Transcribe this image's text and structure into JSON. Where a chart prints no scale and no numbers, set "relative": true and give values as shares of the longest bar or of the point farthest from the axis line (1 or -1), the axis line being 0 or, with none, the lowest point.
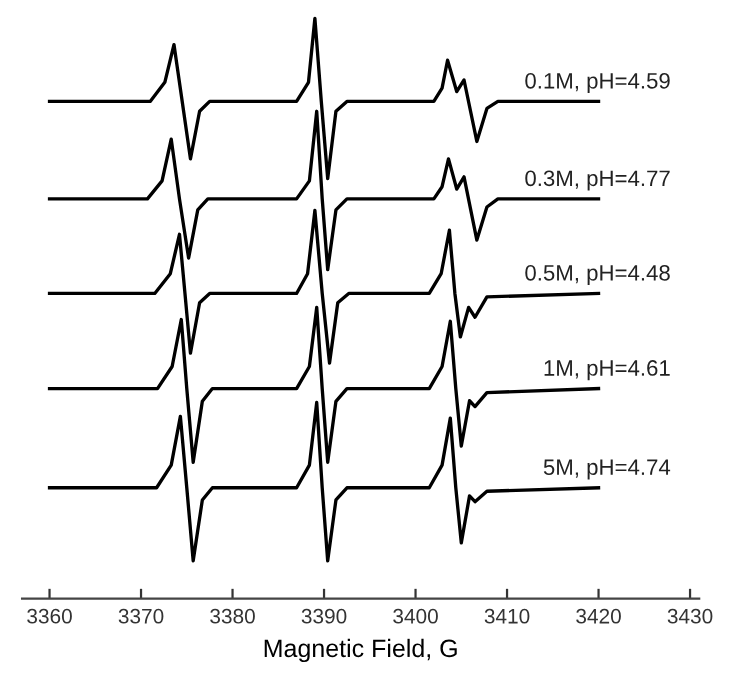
{
  "chart_data": {
    "type": "line",
    "xlabel": "Magnetic Field, G",
    "relative": true,
    "tick_labels": "x",
    "xlim": [
      3357,
      3431
    ],
    "xticks": [
      3360,
      3370,
      3380,
      3390,
      3400,
      3410,
      3420,
      3430
    ],
    "series": [
      {
        "name": "0.1M, pH=4.59",
        "color": "#000000",
        "x": [
          3360,
          3371,
          3372.6,
          3373.6,
          3374.5,
          3375.4,
          3376.4,
          3377.5,
          3387,
          3388.3,
          3389.0,
          3389.7,
          3390.4,
          3391.3,
          3392.5,
          3402,
          3402.9,
          3403.5,
          3404.5,
          3405.3,
          3406.7,
          3407.8,
          3409,
          3420
        ],
        "values": [
          0.857,
          0.857,
          0.89,
          0.955,
          0.857,
          0.758,
          0.84,
          0.857,
          0.857,
          0.89,
          1.0,
          0.857,
          0.724,
          0.84,
          0.857,
          0.857,
          0.88,
          0.928,
          0.874,
          0.894,
          0.788,
          0.845,
          0.857,
          0.857
        ]
      },
      {
        "name": "0.3M, pH=4.77",
        "color": "#000000",
        "x": [
          3360,
          3370.7,
          3372.3,
          3373.3,
          3374.2,
          3375.2,
          3376.2,
          3377.3,
          3387,
          3388.4,
          3389.2,
          3389.8,
          3390.4,
          3391.3,
          3392.5,
          3402,
          3402.9,
          3403.6,
          3404.5,
          3405.3,
          3406.7,
          3407.8,
          3409,
          3420
        ],
        "values": [
          0.689,
          0.689,
          0.72,
          0.792,
          0.689,
          0.587,
          0.67,
          0.689,
          0.689,
          0.72,
          0.84,
          0.689,
          0.567,
          0.67,
          0.689,
          0.689,
          0.71,
          0.758,
          0.706,
          0.727,
          0.618,
          0.675,
          0.689,
          0.689
        ]
      },
      {
        "name": "0.5M, pH=4.48",
        "color": "#000000",
        "x": [
          3360,
          3371.5,
          3373.2,
          3374.2,
          3374.8,
          3375.4,
          3376.4,
          3377.5,
          3387,
          3388.2,
          3389.0,
          3389.8,
          3390.6,
          3391.5,
          3392.7,
          3401.5,
          3402.8,
          3403.7,
          3404.3,
          3404.9,
          3405.8,
          3406.5,
          3407.8,
          3420
        ],
        "values": [
          0.526,
          0.526,
          0.56,
          0.628,
          0.526,
          0.423,
          0.51,
          0.526,
          0.526,
          0.56,
          0.669,
          0.526,
          0.406,
          0.51,
          0.526,
          0.526,
          0.56,
          0.635,
          0.526,
          0.451,
          0.502,
          0.485,
          0.52,
          0.526
        ]
      },
      {
        "name": "1M, pH=4.61",
        "color": "#000000",
        "x": [
          3360,
          3371.8,
          3373.4,
          3374.4,
          3375.0,
          3375.7,
          3376.7,
          3377.8,
          3387,
          3388.4,
          3389.2,
          3389.8,
          3390.4,
          3391.3,
          3392.5,
          3401.5,
          3402.9,
          3403.8,
          3404.4,
          3405.0,
          3405.9,
          3406.5,
          3407.8,
          3420
        ],
        "values": [
          0.362,
          0.362,
          0.4,
          0.481,
          0.362,
          0.235,
          0.34,
          0.362,
          0.362,
          0.4,
          0.502,
          0.362,
          0.235,
          0.34,
          0.362,
          0.362,
          0.4,
          0.478,
          0.362,
          0.263,
          0.341,
          0.331,
          0.355,
          0.362
        ]
      },
      {
        "name": "5M, pH=4.74",
        "color": "#000000",
        "x": [
          3360,
          3371.7,
          3373.3,
          3374.3,
          3375.0,
          3375.7,
          3376.7,
          3377.8,
          3387,
          3388.4,
          3389.2,
          3389.8,
          3390.4,
          3391.3,
          3392.5,
          3401.5,
          3402.9,
          3403.8,
          3404.4,
          3405.0,
          3405.9,
          3406.5,
          3407.8,
          3420
        ],
        "values": [
          0.191,
          0.191,
          0.23,
          0.314,
          0.191,
          0.065,
          0.17,
          0.191,
          0.191,
          0.23,
          0.338,
          0.191,
          0.065,
          0.17,
          0.191,
          0.191,
          0.23,
          0.311,
          0.191,
          0.096,
          0.177,
          0.167,
          0.185,
          0.191
        ]
      }
    ]
  }
}
